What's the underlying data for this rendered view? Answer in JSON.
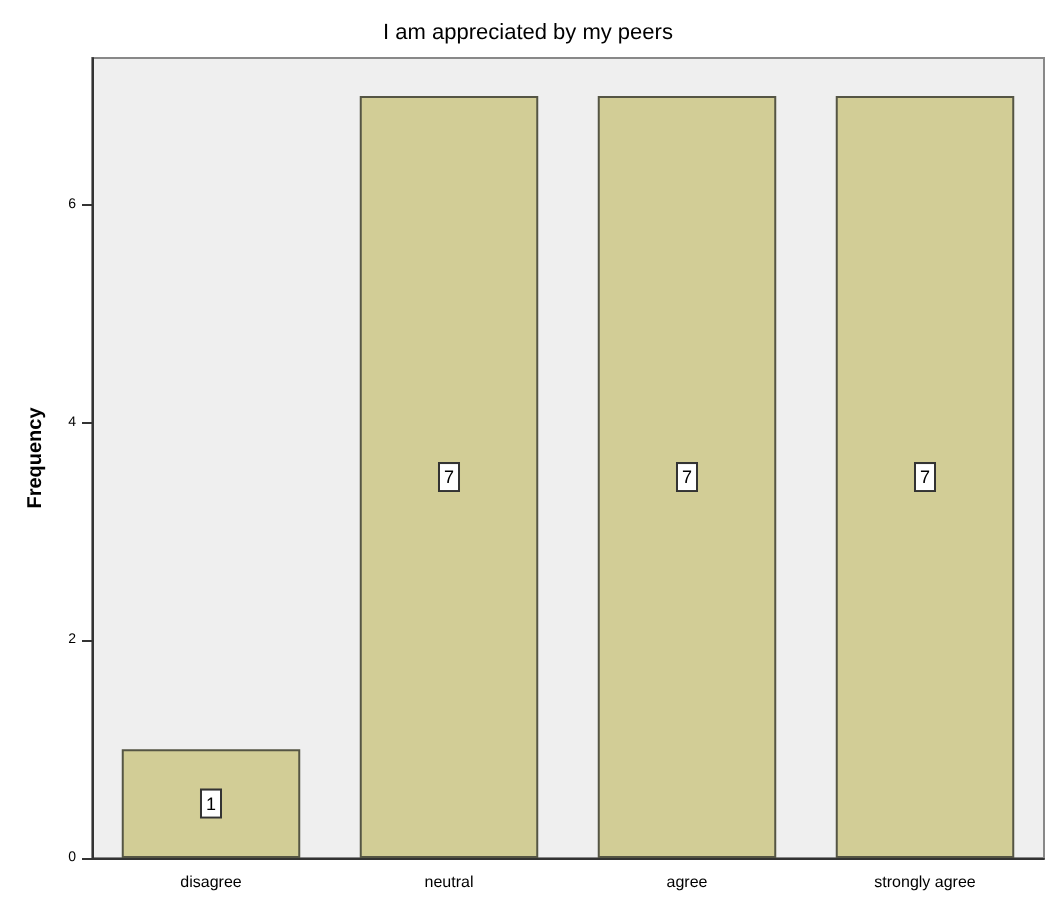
{
  "chart_data": {
    "type": "bar",
    "title": "I am appreciated by my peers",
    "ylabel": "Frequency",
    "categories": [
      "disagree",
      "neutral",
      "agree",
      "strongly agree"
    ],
    "values": [
      1,
      7,
      7,
      7
    ],
    "color": "#d2cd96",
    "ylim": [
      0,
      7.35
    ],
    "yticks": [
      0,
      2,
      4,
      6
    ],
    "grid": false,
    "data_labels": true
  }
}
